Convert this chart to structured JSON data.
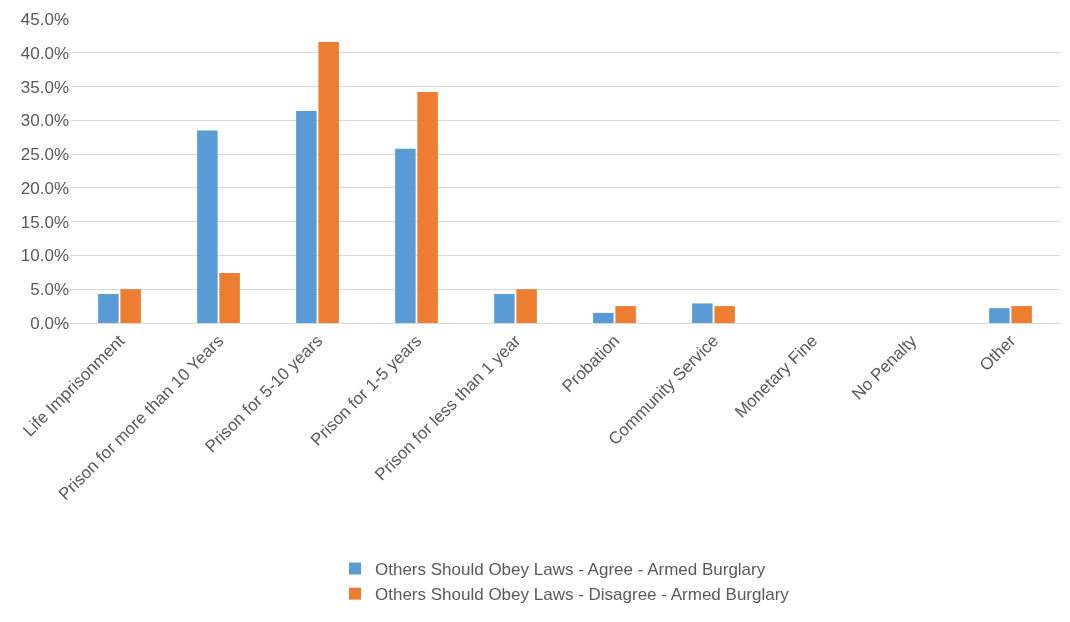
{
  "chart_data": {
    "type": "bar",
    "categories": [
      "Life Imprisonment",
      "Prison for more than 10 Years",
      "Prison for 5-10 years",
      "Prison for 1-5 years",
      "Prison for less than 1 year",
      "Probation",
      "Community Service",
      "Monetary Fine",
      "No Penalty",
      "Other"
    ],
    "series": [
      {
        "name": "Others Should Obey Laws - Agree - Armed Burglary",
        "color": "#5b9bd5",
        "values": [
          4.3,
          28.5,
          31.4,
          25.8,
          4.3,
          1.5,
          2.9,
          0,
          0,
          2.2
        ]
      },
      {
        "name": "Others Should Obey Laws - Disagree - Armed Burglary",
        "color": "#ed7d31",
        "values": [
          5.0,
          7.4,
          41.6,
          34.2,
          5.0,
          2.5,
          2.5,
          0,
          0,
          2.5
        ]
      }
    ],
    "ylim": [
      0,
      45
    ],
    "yticks": [
      {
        "value": 0,
        "label": "0.0%"
      },
      {
        "value": 5,
        "label": "5.0%"
      },
      {
        "value": 10,
        "label": "10.0%"
      },
      {
        "value": 15,
        "label": "15.0%"
      },
      {
        "value": 20,
        "label": "20.0%"
      },
      {
        "value": 25,
        "label": "25.0%"
      },
      {
        "value": 30,
        "label": "30.0%"
      },
      {
        "value": 35,
        "label": "35.0%"
      },
      {
        "value": 40,
        "label": "40.0%"
      },
      {
        "value": 45,
        "label": "45.0%"
      }
    ],
    "grid": "y",
    "legend": "bottom"
  }
}
